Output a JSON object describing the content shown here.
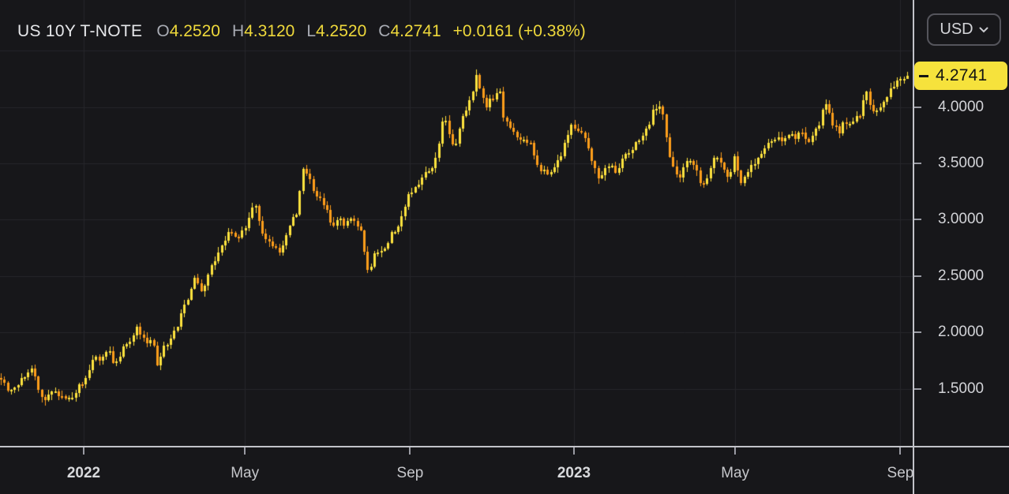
{
  "header": {
    "symbol": "US 10Y T-NOTE",
    "fields": [
      {
        "prefix": "O",
        "value": "4.2520"
      },
      {
        "prefix": "H",
        "value": "4.3120"
      },
      {
        "prefix": "L",
        "value": "4.2520"
      },
      {
        "prefix": "C",
        "value": "4.2741"
      }
    ],
    "change": "+0.0161 (+0.38%)",
    "currency_label": "USD"
  },
  "chart_data": {
    "type": "candlestick",
    "title": "US 10Y T-NOTE yield, daily candles",
    "last_candle": {
      "open": 4.252,
      "high": 4.312,
      "low": 4.252,
      "close": 4.2741
    },
    "change": 0.0161,
    "change_pct": 0.38,
    "grid": true,
    "y_axis": {
      "side": "right",
      "tick_labels": [
        "4.0000",
        "3.5000",
        "3.0000",
        "2.5000",
        "2.0000",
        "1.5000"
      ],
      "tick_values": [
        4.0,
        3.5,
        3.0,
        2.5,
        2.0,
        1.5
      ],
      "grid_values": [
        4.5,
        4.0,
        3.5,
        3.0,
        2.5,
        2.0,
        1.5
      ],
      "range": [
        1.25,
        4.55
      ],
      "last_price": 4.2741,
      "last_price_label": "4.2741"
    },
    "x_axis": {
      "tick_labels": [
        "2022",
        "May",
        "Sep",
        "2023",
        "May",
        "Sep"
      ],
      "tick_dates": [
        "2022-01-01",
        "2022-05-01",
        "2022-09-01",
        "2023-01-01",
        "2023-05-01",
        "2023-09-01"
      ],
      "range": [
        "2021-11-01",
        "2023-09-09"
      ]
    },
    "colors": {
      "up": "#FFE33E",
      "down": "#FF9E1B",
      "grid": "#26262B",
      "background": "#17171A",
      "axis_text": "#D2D3D7",
      "separator": "#C2C3C9",
      "last_price_bg": "#F6E23C",
      "header_value_yellow": "#EFD93B"
    },
    "anchors": [
      [
        "2021-11-01",
        1.56
      ],
      [
        "2021-11-08",
        1.46
      ],
      [
        "2021-11-16",
        1.6
      ],
      [
        "2021-11-24",
        1.67
      ],
      [
        "2021-12-01",
        1.44
      ],
      [
        "2021-12-03",
        1.37
      ],
      [
        "2021-12-08",
        1.5
      ],
      [
        "2021-12-16",
        1.42
      ],
      [
        "2021-12-20",
        1.38
      ],
      [
        "2021-12-29",
        1.52
      ],
      [
        "2022-01-03",
        1.6
      ],
      [
        "2022-01-10",
        1.78
      ],
      [
        "2022-01-14",
        1.71
      ],
      [
        "2022-01-19",
        1.86
      ],
      [
        "2022-01-24",
        1.74
      ],
      [
        "2022-01-28",
        1.8
      ],
      [
        "2022-02-04",
        1.92
      ],
      [
        "2022-02-10",
        2.03
      ],
      [
        "2022-02-15",
        1.96
      ],
      [
        "2022-02-18",
        1.88
      ],
      [
        "2022-02-22",
        1.94
      ],
      [
        "2022-02-25",
        1.72
      ],
      [
        "2022-03-02",
        1.86
      ],
      [
        "2022-03-08",
        1.96
      ],
      [
        "2022-03-11",
        2.02
      ],
      [
        "2022-03-16",
        2.18
      ],
      [
        "2022-03-22",
        2.36
      ],
      [
        "2022-03-25",
        2.48
      ],
      [
        "2022-03-30",
        2.34
      ],
      [
        "2022-04-05",
        2.56
      ],
      [
        "2022-04-12",
        2.7
      ],
      [
        "2022-04-20",
        2.92
      ],
      [
        "2022-04-26",
        2.8
      ],
      [
        "2022-05-03",
        2.98
      ],
      [
        "2022-05-09",
        3.16
      ],
      [
        "2022-05-13",
        2.92
      ],
      [
        "2022-05-19",
        2.82
      ],
      [
        "2022-05-27",
        2.7
      ],
      [
        "2022-06-03",
        2.94
      ],
      [
        "2022-06-09",
        3.06
      ],
      [
        "2022-06-14",
        3.45
      ],
      [
        "2022-06-21",
        3.28
      ],
      [
        "2022-06-28",
        3.16
      ],
      [
        "2022-07-01",
        3.1
      ],
      [
        "2022-07-06",
        2.94
      ],
      [
        "2022-07-11",
        3.0
      ],
      [
        "2022-07-14",
        2.93
      ],
      [
        "2022-07-20",
        3.04
      ],
      [
        "2022-07-27",
        2.92
      ],
      [
        "2022-08-01",
        2.53
      ],
      [
        "2022-08-08",
        2.74
      ],
      [
        "2022-08-12",
        2.68
      ],
      [
        "2022-08-18",
        2.86
      ],
      [
        "2022-08-25",
        2.98
      ],
      [
        "2022-08-31",
        3.2
      ],
      [
        "2022-09-07",
        3.32
      ],
      [
        "2022-09-13",
        3.42
      ],
      [
        "2022-09-19",
        3.49
      ],
      [
        "2022-09-23",
        3.68
      ],
      [
        "2022-09-27",
        3.96
      ],
      [
        "2022-09-30",
        3.76
      ],
      [
        "2022-10-04",
        3.62
      ],
      [
        "2022-10-10",
        3.88
      ],
      [
        "2022-10-14",
        4.0
      ],
      [
        "2022-10-19",
        4.13
      ],
      [
        "2022-10-21",
        4.28
      ],
      [
        "2022-10-26",
        4.04
      ],
      [
        "2022-10-28",
        4.01
      ],
      [
        "2022-11-02",
        4.09
      ],
      [
        "2022-11-07",
        4.18
      ],
      [
        "2022-11-10",
        3.88
      ],
      [
        "2022-11-16",
        3.8
      ],
      [
        "2022-11-23",
        3.72
      ],
      [
        "2022-11-29",
        3.7
      ],
      [
        "2022-12-02",
        3.6
      ],
      [
        "2022-12-07",
        3.44
      ],
      [
        "2022-12-14",
        3.4
      ],
      [
        "2022-12-20",
        3.5
      ],
      [
        "2022-12-27",
        3.72
      ],
      [
        "2022-12-30",
        3.86
      ],
      [
        "2023-01-04",
        3.8
      ],
      [
        "2023-01-09",
        3.72
      ],
      [
        "2023-01-13",
        3.58
      ],
      [
        "2023-01-18",
        3.42
      ],
      [
        "2023-01-20",
        3.38
      ],
      [
        "2023-01-25",
        3.46
      ],
      [
        "2023-01-31",
        3.5
      ],
      [
        "2023-02-02",
        3.4
      ],
      [
        "2023-02-06",
        3.52
      ],
      [
        "2023-02-10",
        3.58
      ],
      [
        "2023-02-15",
        3.64
      ],
      [
        "2023-02-21",
        3.76
      ],
      [
        "2023-02-27",
        3.86
      ],
      [
        "2023-03-02",
        4.0
      ],
      [
        "2023-03-07",
        3.98
      ],
      [
        "2023-03-09",
        3.9
      ],
      [
        "2023-03-13",
        3.6
      ],
      [
        "2023-03-16",
        3.46
      ],
      [
        "2023-03-20",
        3.36
      ],
      [
        "2023-03-23",
        3.44
      ],
      [
        "2023-03-28",
        3.56
      ],
      [
        "2023-04-03",
        3.42
      ],
      [
        "2023-04-06",
        3.28
      ],
      [
        "2023-04-12",
        3.4
      ],
      [
        "2023-04-14",
        3.51
      ],
      [
        "2023-04-19",
        3.56
      ],
      [
        "2023-04-24",
        3.44
      ],
      [
        "2023-04-27",
        3.34
      ],
      [
        "2023-05-01",
        3.56
      ],
      [
        "2023-05-05",
        3.34
      ],
      [
        "2023-05-10",
        3.38
      ],
      [
        "2023-05-15",
        3.5
      ],
      [
        "2023-05-23",
        3.64
      ],
      [
        "2023-05-30",
        3.74
      ],
      [
        "2023-06-05",
        3.7
      ],
      [
        "2023-06-09",
        3.76
      ],
      [
        "2023-06-14",
        3.72
      ],
      [
        "2023-06-20",
        3.77
      ],
      [
        "2023-06-26",
        3.7
      ],
      [
        "2023-06-30",
        3.82
      ],
      [
        "2023-07-03",
        3.86
      ],
      [
        "2023-07-07",
        4.06
      ],
      [
        "2023-07-10",
        3.98
      ],
      [
        "2023-07-14",
        3.82
      ],
      [
        "2023-07-18",
        3.78
      ],
      [
        "2023-07-21",
        3.86
      ],
      [
        "2023-07-26",
        3.84
      ],
      [
        "2023-07-31",
        3.94
      ],
      [
        "2023-08-02",
        3.9
      ],
      [
        "2023-08-04",
        4.02
      ],
      [
        "2023-08-08",
        4.17
      ],
      [
        "2023-08-10",
        4.02
      ],
      [
        "2023-08-14",
        3.95
      ],
      [
        "2023-08-17",
        4.01
      ],
      [
        "2023-08-22",
        4.09
      ],
      [
        "2023-08-25",
        4.14
      ],
      [
        "2023-08-29",
        4.19
      ],
      [
        "2023-09-01",
        4.23
      ],
      [
        "2023-09-06",
        4.25
      ],
      [
        "2023-09-08",
        4.2741
      ]
    ]
  }
}
